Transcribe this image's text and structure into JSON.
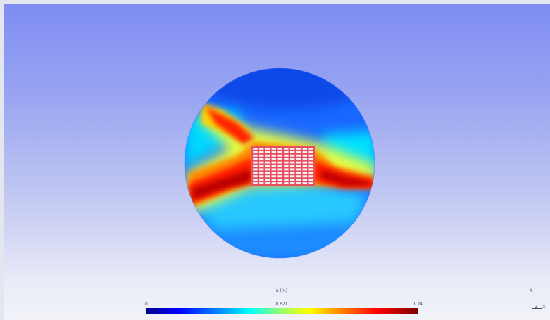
{
  "colors": {
    "low": "#00008f",
    "mid": "#00ffff",
    "high": "#800000",
    "background_top": "#7e8cf2",
    "background_bottom": "#f2f3f8"
  },
  "legend": {
    "title": "u (m)",
    "min_label": "0",
    "mid_label": "0.621",
    "max_label": "1.24"
  },
  "axes": {
    "y": "Y",
    "z": "Z",
    "x": "X"
  },
  "probe_grid": {
    "rows": 11,
    "cols": 10
  }
}
